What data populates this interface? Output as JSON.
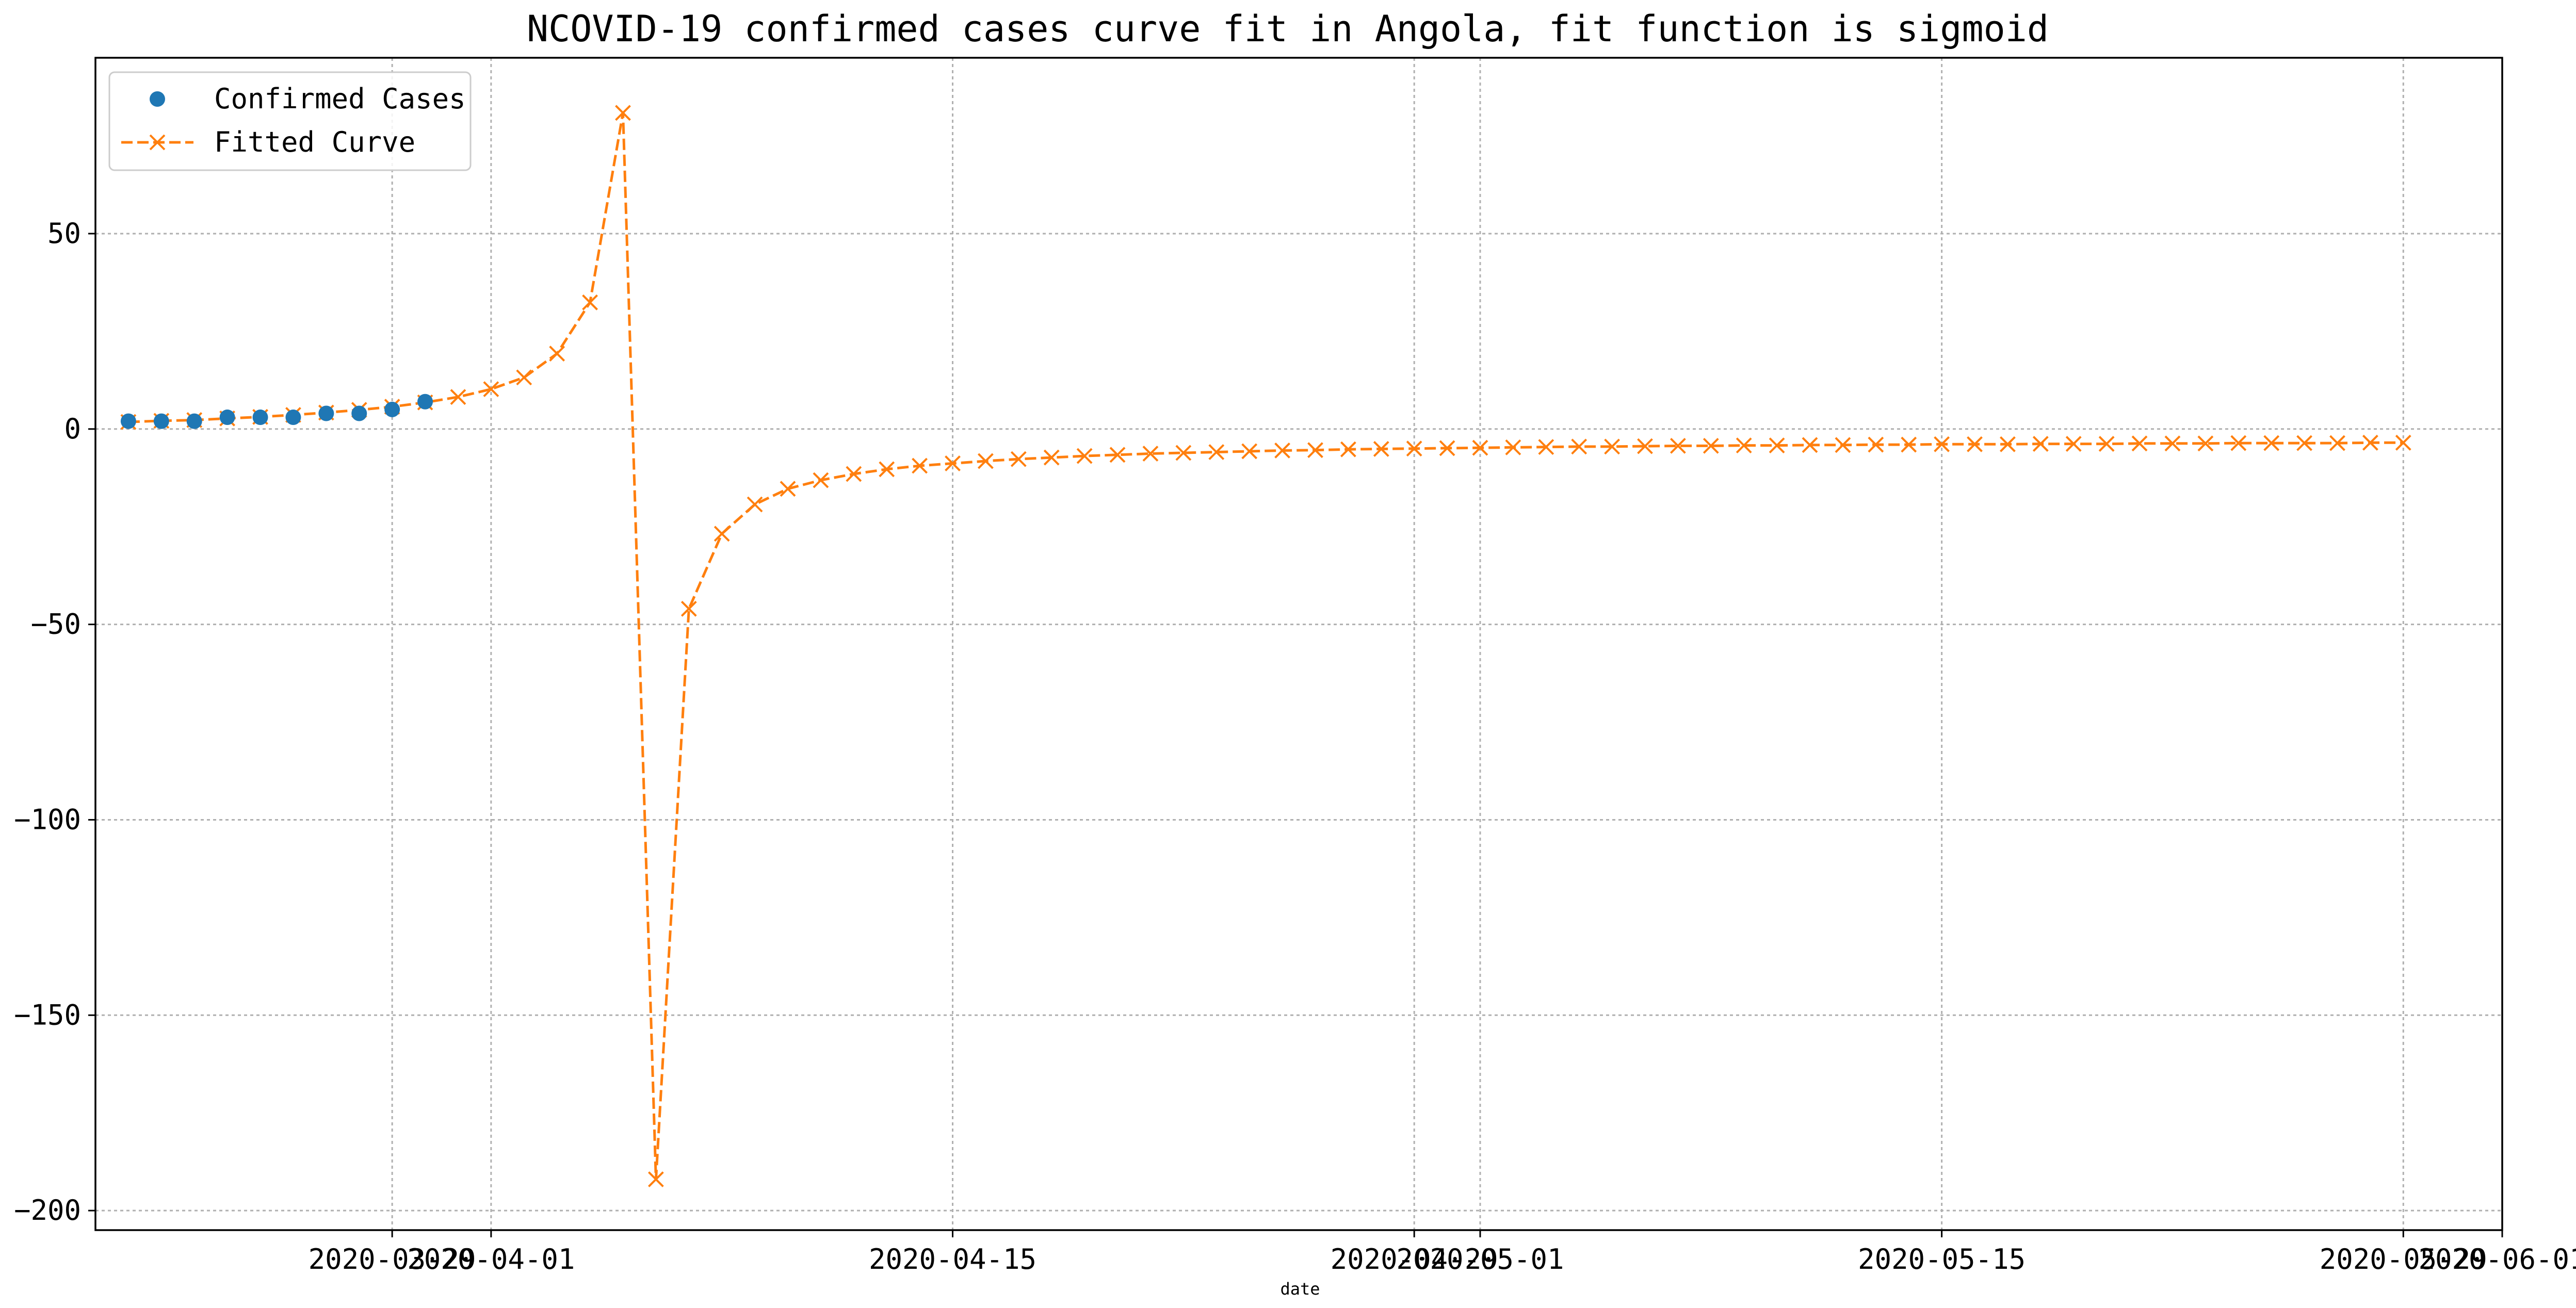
{
  "chart_data": {
    "type": "line",
    "title": "NCOVID-19 confirmed cases curve fit in Angola, fit function is sigmoid",
    "xlabel": "date",
    "ylabel": "",
    "grid": true,
    "legend_position": "top-left",
    "x_ticks": [
      "2020-03-29",
      "2020-04-01",
      "2020-04-15",
      "2020-04-29",
      "2020-05-01",
      "2020-05-15",
      "2020-05-29",
      "2020-06-01"
    ],
    "y_ticks": [
      50,
      0,
      -50,
      -100,
      -150,
      -200
    ],
    "y_tick_labels": [
      "50",
      "0",
      "−50",
      "−100",
      "−150",
      "−200"
    ],
    "xlim": [
      "2020-03-20",
      "2020-06-01"
    ],
    "ylim": [
      -205,
      95
    ],
    "series": [
      {
        "name": "Confirmed Cases",
        "style": "dots",
        "color": "#1f77b4",
        "x": [
          "2020-03-21",
          "2020-03-22",
          "2020-03-23",
          "2020-03-24",
          "2020-03-25",
          "2020-03-26",
          "2020-03-27",
          "2020-03-28",
          "2020-03-29",
          "2020-03-30"
        ],
        "y": [
          2,
          2,
          2,
          3,
          3,
          3,
          4,
          4,
          5,
          7
        ]
      },
      {
        "name": "Fitted Curve",
        "style": "dashed-x",
        "color": "#ff7f0e",
        "x": [
          "2020-03-21",
          "2020-03-22",
          "2020-03-23",
          "2020-03-24",
          "2020-03-25",
          "2020-03-26",
          "2020-03-27",
          "2020-03-28",
          "2020-03-29",
          "2020-03-30",
          "2020-03-31",
          "2020-04-01",
          "2020-04-02",
          "2020-04-03",
          "2020-04-04",
          "2020-04-05",
          "2020-04-06",
          "2020-04-07",
          "2020-04-08",
          "2020-04-09",
          "2020-04-10",
          "2020-04-11",
          "2020-04-12",
          "2020-04-13",
          "2020-04-14",
          "2020-04-15",
          "2020-04-16",
          "2020-04-17",
          "2020-04-18",
          "2020-04-19",
          "2020-04-20",
          "2020-04-21",
          "2020-04-22",
          "2020-04-23",
          "2020-04-24",
          "2020-04-25",
          "2020-04-26",
          "2020-04-27",
          "2020-04-28",
          "2020-04-29",
          "2020-04-30",
          "2020-05-01",
          "2020-05-02",
          "2020-05-03",
          "2020-05-04",
          "2020-05-05",
          "2020-05-06",
          "2020-05-07",
          "2020-05-08",
          "2020-05-09",
          "2020-05-10",
          "2020-05-11",
          "2020-05-12",
          "2020-05-13",
          "2020-05-14",
          "2020-05-15",
          "2020-05-16",
          "2020-05-17",
          "2020-05-18",
          "2020-05-19",
          "2020-05-20",
          "2020-05-21",
          "2020-05-22",
          "2020-05-23",
          "2020-05-24",
          "2020-05-25",
          "2020-05-26",
          "2020-05-27",
          "2020-05-28",
          "2020-05-29"
        ],
        "y": [
          1.8,
          2.1,
          2.3,
          2.7,
          3.1,
          3.6,
          4.2,
          4.9,
          5.7,
          6.8,
          8.2,
          10.2,
          13.2,
          19.3,
          32.4,
          80.9,
          -192,
          -46,
          -26.8,
          -19.3,
          -15.3,
          -13.1,
          -11.5,
          -10.3,
          -9.4,
          -8.8,
          -8.2,
          -7.7,
          -7.3,
          -6.9,
          -6.6,
          -6.3,
          -6.1,
          -5.9,
          -5.7,
          -5.5,
          -5.4,
          -5.2,
          -5.1,
          -5.0,
          -4.9,
          -4.8,
          -4.7,
          -4.6,
          -4.5,
          -4.5,
          -4.4,
          -4.3,
          -4.3,
          -4.2,
          -4.2,
          -4.1,
          -4.1,
          -4.0,
          -4.0,
          -3.9,
          -3.9,
          -3.9,
          -3.8,
          -3.8,
          -3.8,
          -3.7,
          -3.7,
          -3.7,
          -3.6,
          -3.6,
          -3.6,
          -3.6,
          -3.5,
          -3.5
        ]
      }
    ]
  }
}
